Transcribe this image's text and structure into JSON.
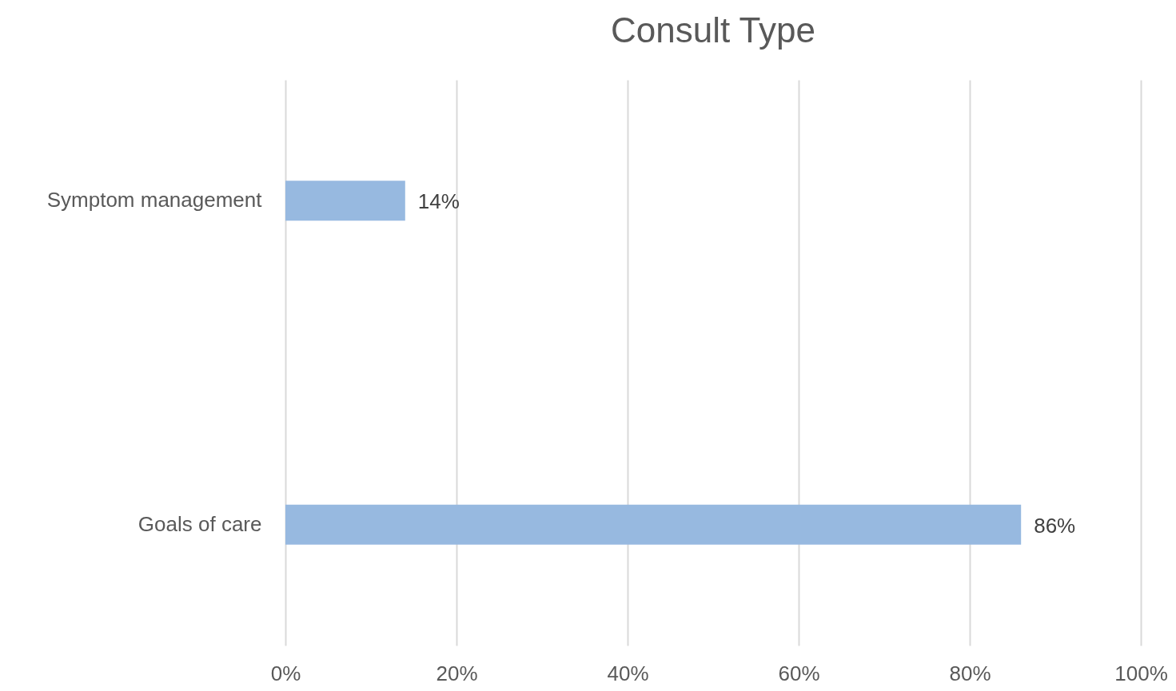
{
  "chart_data": {
    "type": "bar",
    "title": "Consult Type",
    "orientation": "horizontal",
    "categories": [
      "Symptom management",
      "Goals of care"
    ],
    "values": [
      14,
      86
    ],
    "value_labels": [
      "14%",
      "86%"
    ],
    "color": "#97b9e0",
    "xlim": [
      0,
      100
    ],
    "xticks": [
      {
        "value": 0,
        "label": "0%"
      },
      {
        "value": 20,
        "label": "20%"
      },
      {
        "value": 40,
        "label": "40%"
      },
      {
        "value": 60,
        "label": "60%"
      },
      {
        "value": 80,
        "label": "80%"
      },
      {
        "value": 100,
        "label": "100%"
      }
    ],
    "grid": true
  }
}
